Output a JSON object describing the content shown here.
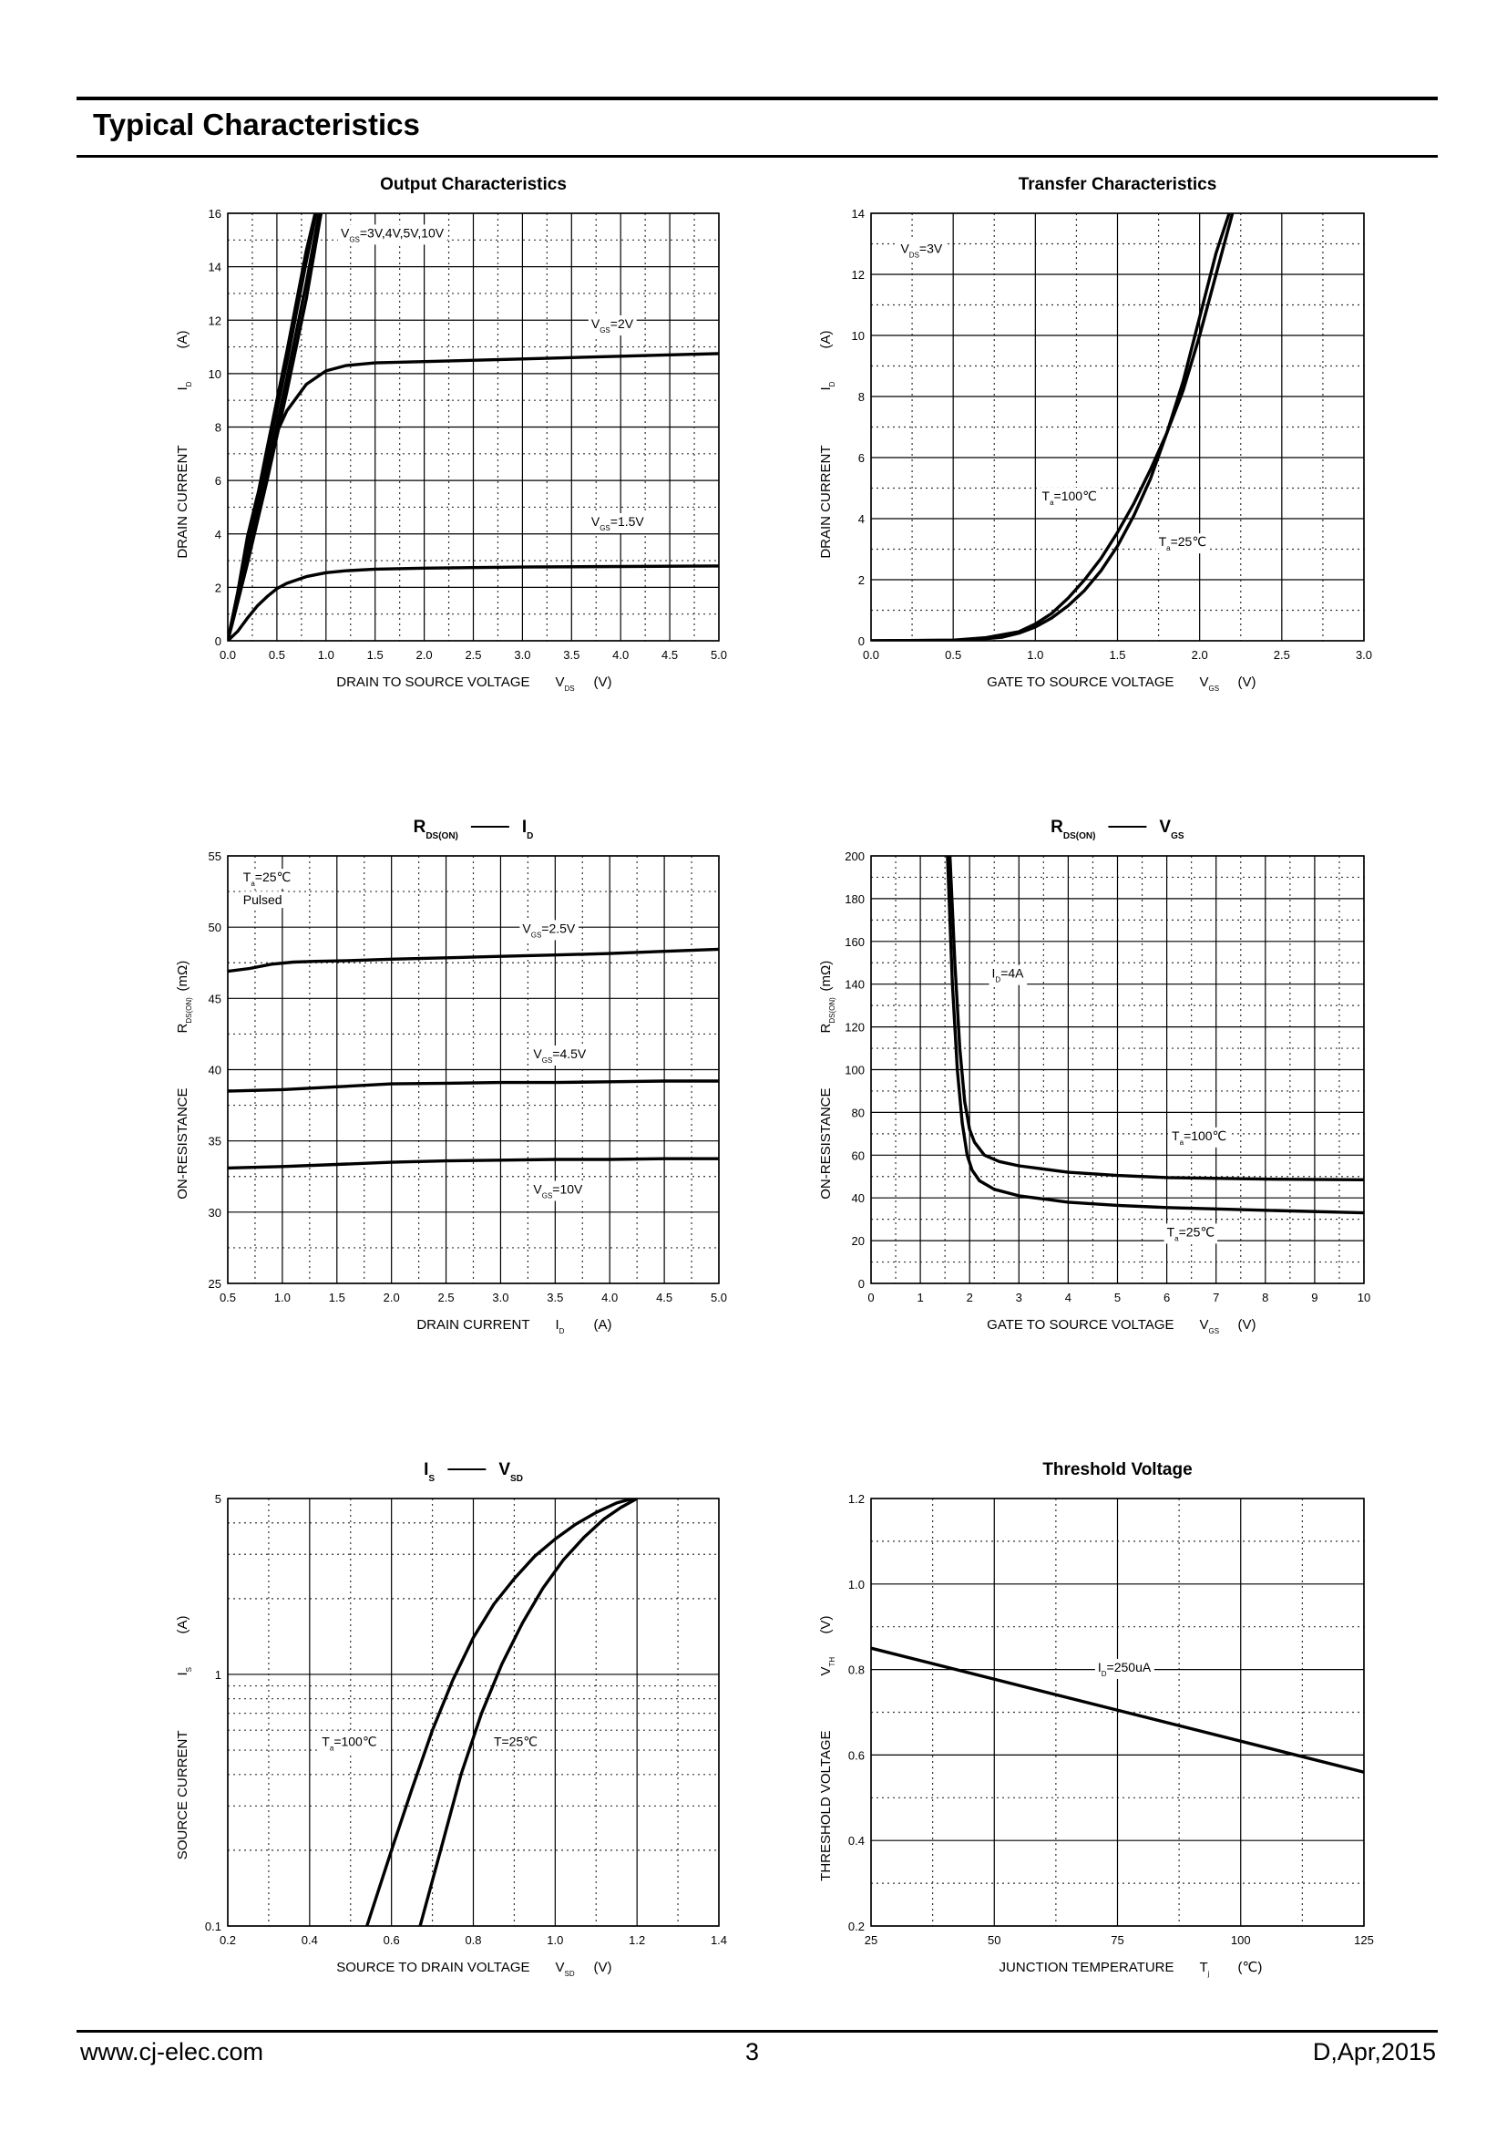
{
  "header": {
    "title": "Typical Characteristics"
  },
  "footer": {
    "url": "www.cj-elec.com",
    "page": "3",
    "revision": "D,Apr,2015"
  },
  "chart_data": [
    {
      "id": "output",
      "type": "line",
      "title": "Output Characteristics",
      "xlabel": "DRAIN TO SOURCE VOLTAGE",
      "xsym": "V",
      "xsub": "DS",
      "xunit": "(V)",
      "ylabel": "DRAIN CURRENT",
      "ysym": "I",
      "ysub": "D",
      "yunit": "(A)",
      "xlim": [
        0,
        5
      ],
      "ylim": [
        0,
        16
      ],
      "xticks": [
        "0.0",
        "0.5",
        "1.0",
        "1.5",
        "2.0",
        "2.5",
        "3.0",
        "3.5",
        "4.0",
        "4.5",
        "5.0"
      ],
      "yticks": [
        "0",
        "2",
        "4",
        "6",
        "8",
        "10",
        "12",
        "14",
        "16"
      ],
      "grid": true,
      "series": [
        {
          "x": [
            0,
            0.05,
            0.2,
            0.4,
            0.6,
            0.8,
            0.95
          ],
          "y": [
            0,
            0.7,
            2.9,
            6.0,
            9.3,
            12.8,
            16
          ]
        },
        {
          "x": [
            0,
            0.05,
            0.2,
            0.4,
            0.6,
            0.8,
            0.93
          ],
          "y": [
            0,
            0.8,
            3.1,
            6.4,
            9.8,
            13.4,
            16
          ]
        },
        {
          "x": [
            0,
            0.05,
            0.2,
            0.4,
            0.6,
            0.8,
            0.9
          ],
          "y": [
            0,
            0.8,
            3.3,
            6.9,
            10.4,
            14.2,
            16
          ]
        },
        {
          "x": [
            0,
            0.05,
            0.2,
            0.4,
            0.6,
            0.8,
            0.89
          ],
          "y": [
            0,
            0.9,
            3.5,
            7.2,
            10.8,
            14.6,
            16
          ]
        },
        {
          "x": [
            0,
            0.1,
            0.2,
            0.3,
            0.4,
            0.5,
            0.6,
            0.8,
            1.0,
            1.2,
            1.5,
            2.0,
            3.0,
            4.0,
            5.0
          ],
          "y": [
            0,
            1.8,
            3.9,
            5.4,
            6.7,
            7.8,
            8.6,
            9.6,
            10.1,
            10.3,
            10.4,
            10.45,
            10.55,
            10.65,
            10.75
          ]
        },
        {
          "x": [
            0,
            0.1,
            0.2,
            0.3,
            0.4,
            0.5,
            0.6,
            0.8,
            1.0,
            1.2,
            1.5,
            2.0,
            3.0,
            4.0,
            5.0
          ],
          "y": [
            0,
            0.35,
            0.85,
            1.3,
            1.65,
            1.95,
            2.15,
            2.4,
            2.55,
            2.62,
            2.68,
            2.72,
            2.76,
            2.78,
            2.8
          ]
        }
      ],
      "annotations": [
        {
          "sym": "V",
          "sub": "GS",
          "text": "=3V,4V,5V,10V",
          "x": 1.15,
          "y": 15.1
        },
        {
          "sym": "V",
          "sub": "GS",
          "text": "=2V",
          "x": 3.7,
          "y": 11.7
        },
        {
          "sym": "V",
          "sub": "GS",
          "text": "=1.5V",
          "x": 3.7,
          "y": 4.3
        }
      ]
    },
    {
      "id": "transfer",
      "type": "line",
      "title": "Transfer Characteristics",
      "xlabel": "GATE TO SOURCE VOLTAGE",
      "xsym": "V",
      "xsub": "GS",
      "xunit": "(V)",
      "ylabel": "DRAIN CURRENT",
      "ysym": "I",
      "ysub": "D",
      "yunit": "(A)",
      "xlim": [
        0,
        3
      ],
      "ylim": [
        0,
        14
      ],
      "xticks": [
        "0.0",
        "0.5",
        "1.0",
        "1.5",
        "2.0",
        "2.5",
        "3.0"
      ],
      "yticks": [
        "0",
        "2",
        "4",
        "6",
        "8",
        "10",
        "12",
        "14"
      ],
      "grid": true,
      "series": [
        {
          "name_sym": "T",
          "name_sub": "a",
          "name_text": "=100℃",
          "x": [
            0,
            0.5,
            0.7,
            0.9,
            1.0,
            1.1,
            1.2,
            1.3,
            1.4,
            1.5,
            1.6,
            1.7,
            1.8,
            1.9,
            2.0,
            2.1,
            2.2
          ],
          "y": [
            0,
            0.02,
            0.1,
            0.3,
            0.55,
            0.9,
            1.4,
            2.0,
            2.7,
            3.55,
            4.5,
            5.6,
            6.8,
            8.2,
            10.0,
            12.0,
            14.0
          ]
        },
        {
          "name_sym": "T",
          "name_sub": "a",
          "name_text": "=25℃",
          "x": [
            0,
            0.6,
            0.8,
            0.9,
            1.0,
            1.1,
            1.2,
            1.3,
            1.4,
            1.5,
            1.6,
            1.7,
            1.8,
            1.9,
            2.0,
            2.1,
            2.18
          ],
          "y": [
            0,
            0.02,
            0.12,
            0.25,
            0.45,
            0.75,
            1.15,
            1.65,
            2.3,
            3.1,
            4.1,
            5.3,
            6.8,
            8.5,
            10.6,
            12.7,
            14.0
          ]
        }
      ],
      "annotations": [
        {
          "sym": "V",
          "sub": "DS",
          "text": "=3V",
          "x": 0.18,
          "y": 12.7
        },
        {
          "sym": "T",
          "sub": "a",
          "text": "=100℃",
          "x": 1.04,
          "y": 4.6
        },
        {
          "sym": "T",
          "sub": "a",
          "text": "=25℃",
          "x": 1.75,
          "y": 3.1
        }
      ]
    },
    {
      "id": "rds-id",
      "type": "line",
      "title_parts": {
        "a_sym": "R",
        "a_sub": "DS(ON)",
        "b_sym": "I",
        "b_sub": "D"
      },
      "xlabel": "DRAIN CURRENT",
      "xsym": "I",
      "xsub": "D",
      "xunit": "(A)",
      "ylabel": "ON-RESISTANCE",
      "ysym": "R",
      "ysub": "DS(ON)",
      "yunit": "(mΩ)",
      "xlim": [
        0.5,
        5
      ],
      "ylim": [
        25,
        55
      ],
      "xticks": [
        "0.5",
        "1.0",
        "1.5",
        "2.0",
        "2.5",
        "3.0",
        "3.5",
        "4.0",
        "4.5",
        "5.0"
      ],
      "yticks": [
        "25",
        "30",
        "35",
        "40",
        "45",
        "50",
        "55"
      ],
      "grid": true,
      "series": [
        {
          "x": [
            0.5,
            0.7,
            0.9,
            1.1,
            1.3,
            1.6,
            2.0,
            2.5,
            3.0,
            3.5,
            4.0,
            4.5,
            5.0
          ],
          "y": [
            46.9,
            47.1,
            47.4,
            47.55,
            47.6,
            47.65,
            47.75,
            47.85,
            47.95,
            48.05,
            48.15,
            48.3,
            48.45
          ]
        },
        {
          "x": [
            0.5,
            1.0,
            1.5,
            2.0,
            2.5,
            3.0,
            3.5,
            4.0,
            4.5,
            5.0
          ],
          "y": [
            38.5,
            38.6,
            38.8,
            39.0,
            39.05,
            39.1,
            39.1,
            39.15,
            39.2,
            39.2
          ]
        },
        {
          "x": [
            0.5,
            1.0,
            1.5,
            2.0,
            2.5,
            3.0,
            3.5,
            4.0,
            4.5,
            5.0
          ],
          "y": [
            33.1,
            33.2,
            33.35,
            33.5,
            33.6,
            33.65,
            33.7,
            33.7,
            33.75,
            33.75
          ]
        }
      ],
      "annotations": [
        {
          "sym": "T",
          "sub": "a",
          "text": "=25℃",
          "x": 0.64,
          "y": 53.2
        },
        {
          "sym": "",
          "sub": "",
          "text": "Pulsed",
          "x": 0.64,
          "y": 51.6
        },
        {
          "sym": "V",
          "sub": "GS",
          "text": "=2.5V",
          "x": 3.2,
          "y": 49.6
        },
        {
          "sym": "V",
          "sub": "GS",
          "text": "=4.5V",
          "x": 3.3,
          "y": 40.8
        },
        {
          "sym": "V",
          "sub": "GS",
          "text": "=10V",
          "x": 3.3,
          "y": 31.3
        }
      ]
    },
    {
      "id": "rds-vgs",
      "type": "line",
      "title_parts": {
        "a_sym": "R",
        "a_sub": "DS(ON)",
        "b_sym": "V",
        "b_sub": "GS"
      },
      "xlabel": "GATE TO SOURCE VOLTAGE",
      "xsym": "V",
      "xsub": "GS",
      "xunit": "(V)",
      "ylabel": "ON-RESISTANCE",
      "ysym": "R",
      "ysub": "DS(ON)",
      "yunit": "(mΩ)",
      "xlim": [
        0,
        10
      ],
      "ylim": [
        0,
        200
      ],
      "xticks": [
        "0",
        "1",
        "2",
        "3",
        "4",
        "5",
        "6",
        "7",
        "8",
        "9",
        "10"
      ],
      "yticks": [
        "0",
        "20",
        "40",
        "60",
        "80",
        "100",
        "120",
        "140",
        "160",
        "180",
        "200"
      ],
      "grid": true,
      "series": [
        {
          "x": [
            1.6,
            1.7,
            1.8,
            1.9,
            2.0,
            2.1,
            2.3,
            2.6,
            3.0,
            4.0,
            5.0,
            6.0,
            8.0,
            10.0
          ],
          "y": [
            200,
            150,
            110,
            85,
            72,
            66,
            60,
            57,
            55,
            52,
            50.5,
            49.5,
            48.8,
            48.5
          ]
        },
        {
          "x": [
            1.55,
            1.65,
            1.75,
            1.85,
            1.95,
            2.05,
            2.2,
            2.5,
            3.0,
            4.0,
            5.0,
            6.0,
            8.0,
            10.0
          ],
          "y": [
            200,
            140,
            100,
            75,
            60,
            53,
            48,
            44,
            41,
            38,
            36.5,
            35.5,
            34.2,
            33.0
          ]
        }
      ],
      "annotations": [
        {
          "sym": "I",
          "sub": "D",
          "text": "=4A",
          "x": 2.45,
          "y": 143
        },
        {
          "sym": "T",
          "sub": "a",
          "text": "=100℃",
          "x": 6.1,
          "y": 67
        },
        {
          "sym": "T",
          "sub": "a",
          "text": "=25℃",
          "x": 6.0,
          "y": 22
        }
      ]
    },
    {
      "id": "is-vsd",
      "type": "line",
      "title_parts": {
        "a_sym": "I",
        "a_sub": "S",
        "b_sym": "V",
        "b_sub": "SD"
      },
      "xlabel": "SOURCE TO DRAIN VOLTAGE",
      "xsym": "V",
      "xsub": "SD",
      "xunit": "(V)",
      "ylabel": "SOURCE CURRENT",
      "ysym": "I",
      "ysub": "S",
      "yunit": "(A)",
      "xlim": [
        0.2,
        1.4
      ],
      "ylim": [
        0.1,
        5
      ],
      "yscale": "log",
      "xticks": [
        "0.2",
        "0.4",
        "0.6",
        "0.8",
        "1.0",
        "1.2",
        "1.4"
      ],
      "yticks": [
        "0.1",
        "1",
        "5"
      ],
      "grid": true,
      "series": [
        {
          "x": [
            0.54,
            0.6,
            0.65,
            0.7,
            0.75,
            0.8,
            0.85,
            0.9,
            0.95,
            1.0,
            1.05,
            1.1,
            1.15,
            1.19
          ],
          "y": [
            0.1,
            0.2,
            0.35,
            0.6,
            0.95,
            1.4,
            1.9,
            2.4,
            2.95,
            3.45,
            3.95,
            4.4,
            4.8,
            5.0
          ]
        },
        {
          "x": [
            0.67,
            0.72,
            0.77,
            0.82,
            0.87,
            0.92,
            0.97,
            1.02,
            1.07,
            1.12,
            1.16,
            1.2
          ],
          "y": [
            0.1,
            0.2,
            0.4,
            0.7,
            1.1,
            1.6,
            2.2,
            2.85,
            3.5,
            4.15,
            4.6,
            5.0
          ]
        }
      ],
      "annotations": [
        {
          "sym": "T",
          "sub": "a",
          "text": "=100℃",
          "x": 0.43,
          "y": 0.52
        },
        {
          "sym": "",
          "sub": "",
          "text": "T=25℃",
          "x": 0.85,
          "y": 0.52
        }
      ]
    },
    {
      "id": "threshold",
      "type": "line",
      "title": "Threshold Voltage",
      "xlabel": "JUNCTION TEMPERATURE",
      "xsym": "T",
      "xsub": "j",
      "xunit": "(℃)",
      "ylabel": "THRESHOLD VOLTAGE",
      "ysym": "V",
      "ysub": "TH",
      "yunit": "(V)",
      "xlim": [
        25,
        125
      ],
      "ylim": [
        0.2,
        1.2
      ],
      "xticks": [
        "25",
        "50",
        "75",
        "100",
        "125"
      ],
      "yticks": [
        "0.2",
        "0.4",
        "0.6",
        "0.8",
        "1.0",
        "1.2"
      ],
      "grid": true,
      "series": [
        {
          "x": [
            25,
            125
          ],
          "y": [
            0.85,
            0.56
          ]
        }
      ],
      "annotations": [
        {
          "sym": "I",
          "sub": "D",
          "text": "=250uA",
          "x": 71,
          "y": 0.795
        }
      ]
    }
  ]
}
